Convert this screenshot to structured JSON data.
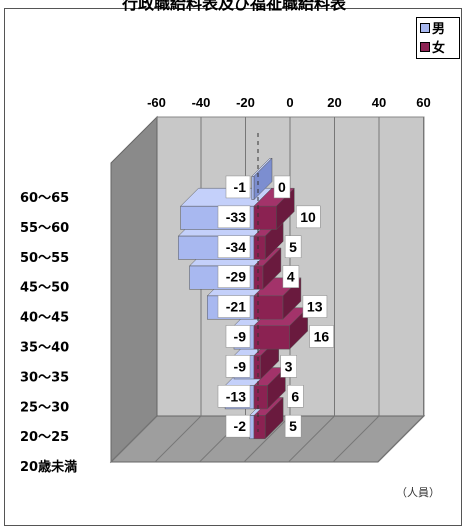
{
  "chart_data": {
    "type": "bar",
    "title": "行政職給料表及び福祉職給料表",
    "orientation": "horizontal",
    "stacking": "back-to-back",
    "categories": [
      "60〜65",
      "55〜60",
      "50〜55",
      "45〜50",
      "40〜45",
      "35〜40",
      "30〜35",
      "25〜30",
      "20〜25",
      "20歳未満"
    ],
    "series": [
      {
        "name": "男",
        "color": "#a8b8f0",
        "values": [
          -1,
          -33,
          -34,
          -29,
          -21,
          -9,
          -9,
          -13,
          -2,
          0
        ]
      },
      {
        "name": "女",
        "color": "#8b2252",
        "values": [
          0,
          10,
          5,
          4,
          13,
          16,
          3,
          6,
          5,
          0
        ]
      }
    ],
    "labels": {
      "男": [
        "-1",
        "-33",
        "-34",
        "-29",
        "-21",
        "-9",
        "-9",
        "-13",
        "-2",
        ""
      ],
      "女": [
        "0",
        "10",
        "5",
        "4",
        "13",
        "16",
        "3",
        "6",
        "5",
        ""
      ]
    },
    "xlim": [
      -60,
      60
    ],
    "xticks": [
      -60,
      -40,
      -20,
      0,
      20,
      40,
      60
    ],
    "unit": "（人員）",
    "grid": true,
    "legend_position": "top-right",
    "style": "3d"
  }
}
